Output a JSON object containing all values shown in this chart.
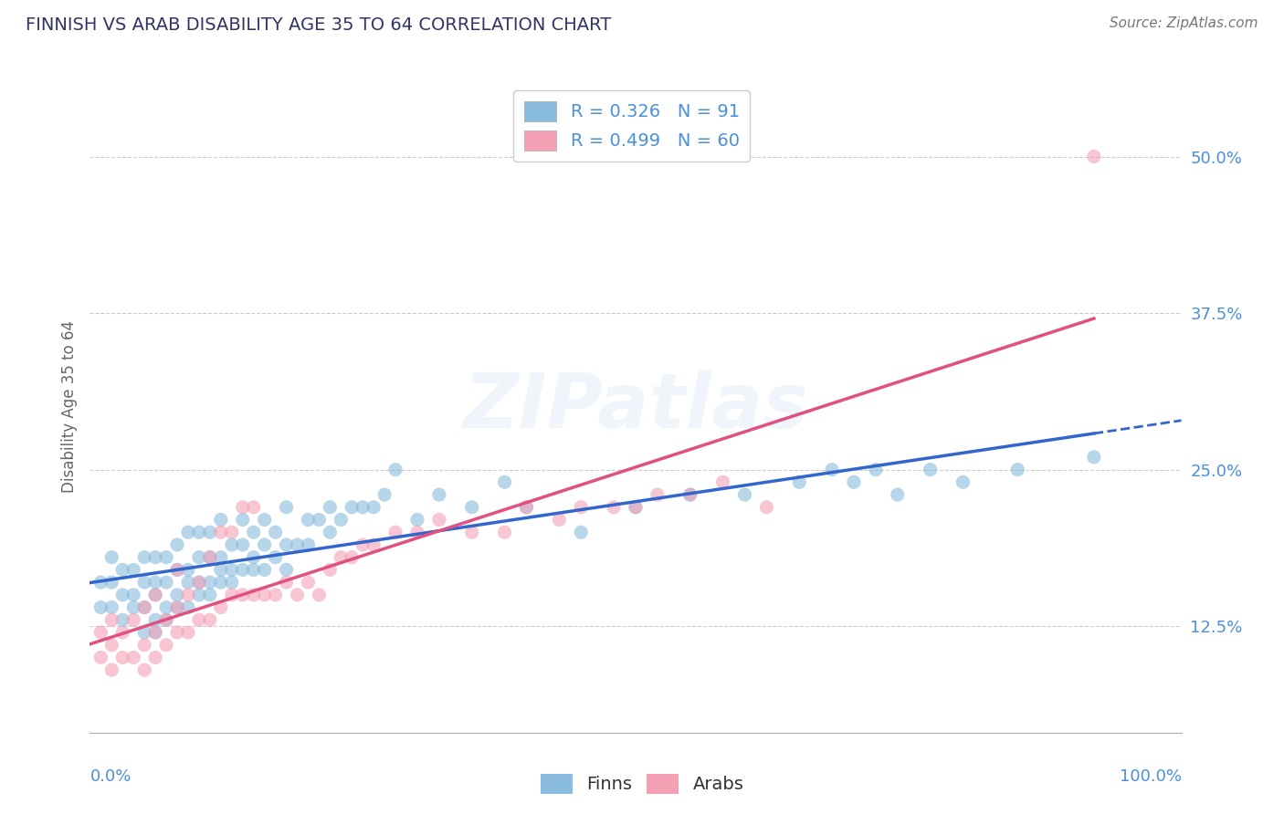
{
  "title": "FINNISH VS ARAB DISABILITY AGE 35 TO 64 CORRELATION CHART",
  "source": "Source: ZipAtlas.com",
  "ylabel": "Disability Age 35 to 64",
  "legend_finnish": "R = 0.326   N = 91",
  "legend_arab": "R = 0.499   N = 60",
  "legend_label_finns": "Finns",
  "legend_label_arabs": "Arabs",
  "finn_color": "#88bbdd",
  "arab_color": "#f4a0b5",
  "finn_line_color": "#3366cc",
  "arab_line_color": "#e05080",
  "background_color": "#ffffff",
  "grid_color": "#cccccc",
  "title_color": "#333366",
  "axis_label_color": "#4a90d9",
  "legend_text_color": "#4a90d9",
  "watermark": "ZIPatlas",
  "xlim": [
    0.0,
    1.0
  ],
  "ylim": [
    0.04,
    0.56
  ],
  "yticks": [
    0.125,
    0.25,
    0.375,
    0.5
  ],
  "ytick_labels": [
    "12.5%",
    "25.0%",
    "37.5%",
    "50.0%"
  ],
  "finns_x": [
    0.01,
    0.01,
    0.02,
    0.02,
    0.02,
    0.03,
    0.03,
    0.03,
    0.04,
    0.04,
    0.04,
    0.05,
    0.05,
    0.05,
    0.05,
    0.06,
    0.06,
    0.06,
    0.06,
    0.06,
    0.07,
    0.07,
    0.07,
    0.07,
    0.08,
    0.08,
    0.08,
    0.08,
    0.09,
    0.09,
    0.09,
    0.09,
    0.1,
    0.1,
    0.1,
    0.1,
    0.11,
    0.11,
    0.11,
    0.11,
    0.12,
    0.12,
    0.12,
    0.12,
    0.13,
    0.13,
    0.13,
    0.14,
    0.14,
    0.14,
    0.15,
    0.15,
    0.15,
    0.16,
    0.16,
    0.16,
    0.17,
    0.17,
    0.18,
    0.18,
    0.18,
    0.19,
    0.2,
    0.2,
    0.21,
    0.22,
    0.22,
    0.23,
    0.24,
    0.25,
    0.26,
    0.27,
    0.28,
    0.3,
    0.32,
    0.35,
    0.38,
    0.4,
    0.45,
    0.5,
    0.55,
    0.6,
    0.65,
    0.68,
    0.7,
    0.72,
    0.74,
    0.77,
    0.8,
    0.85,
    0.92
  ],
  "finns_y": [
    0.14,
    0.16,
    0.14,
    0.16,
    0.18,
    0.13,
    0.15,
    0.17,
    0.14,
    0.15,
    0.17,
    0.12,
    0.14,
    0.16,
    0.18,
    0.12,
    0.13,
    0.15,
    0.16,
    0.18,
    0.13,
    0.14,
    0.16,
    0.18,
    0.14,
    0.15,
    0.17,
    0.19,
    0.14,
    0.16,
    0.17,
    0.2,
    0.15,
    0.16,
    0.18,
    0.2,
    0.15,
    0.16,
    0.18,
    0.2,
    0.16,
    0.17,
    0.18,
    0.21,
    0.16,
    0.17,
    0.19,
    0.17,
    0.19,
    0.21,
    0.17,
    0.18,
    0.2,
    0.17,
    0.19,
    0.21,
    0.18,
    0.2,
    0.17,
    0.19,
    0.22,
    0.19,
    0.19,
    0.21,
    0.21,
    0.2,
    0.22,
    0.21,
    0.22,
    0.22,
    0.22,
    0.23,
    0.25,
    0.21,
    0.23,
    0.22,
    0.24,
    0.22,
    0.2,
    0.22,
    0.23,
    0.23,
    0.24,
    0.25,
    0.24,
    0.25,
    0.23,
    0.25,
    0.24,
    0.25,
    0.26
  ],
  "arabs_x": [
    0.01,
    0.01,
    0.02,
    0.02,
    0.02,
    0.03,
    0.03,
    0.04,
    0.04,
    0.05,
    0.05,
    0.05,
    0.06,
    0.06,
    0.06,
    0.07,
    0.07,
    0.08,
    0.08,
    0.08,
    0.09,
    0.09,
    0.1,
    0.1,
    0.11,
    0.11,
    0.12,
    0.12,
    0.13,
    0.13,
    0.14,
    0.14,
    0.15,
    0.15,
    0.16,
    0.17,
    0.18,
    0.19,
    0.2,
    0.21,
    0.22,
    0.23,
    0.24,
    0.25,
    0.26,
    0.28,
    0.3,
    0.32,
    0.35,
    0.38,
    0.4,
    0.43,
    0.45,
    0.48,
    0.5,
    0.52,
    0.55,
    0.58,
    0.62,
    0.92
  ],
  "arabs_y": [
    0.1,
    0.12,
    0.09,
    0.11,
    0.13,
    0.1,
    0.12,
    0.1,
    0.13,
    0.09,
    0.11,
    0.14,
    0.1,
    0.12,
    0.15,
    0.11,
    0.13,
    0.12,
    0.14,
    0.17,
    0.12,
    0.15,
    0.13,
    0.16,
    0.13,
    0.18,
    0.14,
    0.2,
    0.15,
    0.2,
    0.15,
    0.22,
    0.15,
    0.22,
    0.15,
    0.15,
    0.16,
    0.15,
    0.16,
    0.15,
    0.17,
    0.18,
    0.18,
    0.19,
    0.19,
    0.2,
    0.2,
    0.21,
    0.2,
    0.2,
    0.22,
    0.21,
    0.22,
    0.22,
    0.22,
    0.23,
    0.23,
    0.24,
    0.22,
    0.5
  ]
}
